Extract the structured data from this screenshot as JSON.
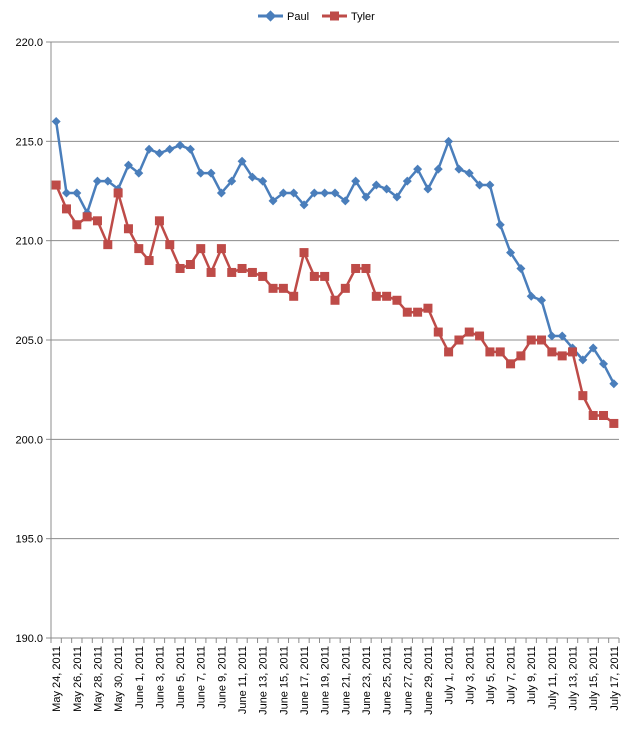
{
  "chart_data": {
    "type": "line",
    "ylim": [
      190,
      220
    ],
    "ytick_labels": [
      "220.0",
      "215.0",
      "210.0",
      "205.0",
      "200.0",
      "195.0",
      "190.0"
    ],
    "ytick_values": [
      220,
      215,
      210,
      205,
      200,
      195,
      190
    ],
    "grid": "horizontal",
    "legend_position": "top",
    "x_tick_labels": [
      "May 24, 2011",
      "May 26, 2011",
      "May 28, 2011",
      "May 30, 2011",
      "June 1, 2011",
      "June 3, 2011",
      "June 5, 2011",
      "June 7, 2011",
      "June 9, 2011",
      "June 11, 2011",
      "June 13, 2011",
      "June 15, 2011",
      "June 17, 2011",
      "June 19, 2011",
      "June 21, 2011",
      "June 23, 2011",
      "June 25, 2011",
      "June 27, 2011",
      "June 29, 2011",
      "July 1, 2011",
      "July 3, 2011",
      "July 5, 2011",
      "July 7, 2011",
      "July 9, 2011",
      "July 11, 2011",
      "July 13, 2011",
      "July 15, 2011",
      "July 17, 2011"
    ],
    "categories": [
      "May 24, 2011",
      "May 25, 2011",
      "May 26, 2011",
      "May 27, 2011",
      "May 28, 2011",
      "May 29, 2011",
      "May 30, 2011",
      "May 31, 2011",
      "June 1, 2011",
      "June 2, 2011",
      "June 3, 2011",
      "June 4, 2011",
      "June 5, 2011",
      "June 6, 2011",
      "June 7, 2011",
      "June 8, 2011",
      "June 9, 2011",
      "June 10, 2011",
      "June 11, 2011",
      "June 12, 2011",
      "June 13, 2011",
      "June 14, 2011",
      "June 15, 2011",
      "June 16, 2011",
      "June 17, 2011",
      "June 18, 2011",
      "June 19, 2011",
      "June 20, 2011",
      "June 21, 2011",
      "June 22, 2011",
      "June 23, 2011",
      "June 24, 2011",
      "June 25, 2011",
      "June 26, 2011",
      "June 27, 2011",
      "June 28, 2011",
      "June 29, 2011",
      "June 30, 2011",
      "July 1, 2011",
      "July 2, 2011",
      "July 3, 2011",
      "July 4, 2011",
      "July 5, 2011",
      "July 6, 2011",
      "July 7, 2011",
      "July 8, 2011",
      "July 9, 2011",
      "July 10, 2011",
      "July 11, 2011",
      "July 12, 2011",
      "July 13, 2011",
      "July 14, 2011",
      "July 15, 2011",
      "July 16, 2011",
      "July 17, 2011"
    ],
    "series": [
      {
        "name": "Paul",
        "color": "#4A7EBB",
        "marker": "diamond",
        "values": [
          216.0,
          212.4,
          212.4,
          211.4,
          213.0,
          213.0,
          212.6,
          213.8,
          213.4,
          214.6,
          214.4,
          214.6,
          214.8,
          214.6,
          213.4,
          213.4,
          212.4,
          213.0,
          214.0,
          213.2,
          213.0,
          212.0,
          212.4,
          212.4,
          211.8,
          212.4,
          212.4,
          212.4,
          212.0,
          213.0,
          212.2,
          212.8,
          212.6,
          212.2,
          213.0,
          213.6,
          212.6,
          213.6,
          215.0,
          213.6,
          213.4,
          212.8,
          212.8,
          210.8,
          209.4,
          208.6,
          207.2,
          207.0,
          205.2,
          205.2,
          204.6,
          204.0,
          204.6,
          203.8,
          202.8
        ]
      },
      {
        "name": "Tyler",
        "color": "#BE4B48",
        "marker": "square",
        "values": [
          212.8,
          211.6,
          210.8,
          211.2,
          211.0,
          209.8,
          212.4,
          210.6,
          209.6,
          209.0,
          211.0,
          209.8,
          208.6,
          208.8,
          209.6,
          208.4,
          209.6,
          208.4,
          208.6,
          208.4,
          208.2,
          207.6,
          207.6,
          207.2,
          209.4,
          208.2,
          208.2,
          207.0,
          207.6,
          208.6,
          208.6,
          207.2,
          207.2,
          207.0,
          206.4,
          206.4,
          206.6,
          205.4,
          204.4,
          205.0,
          205.4,
          205.2,
          204.4,
          204.4,
          203.8,
          204.2,
          205.0,
          205.0,
          204.4,
          204.2,
          204.4,
          202.2,
          201.2,
          201.2,
          200.8
        ]
      }
    ]
  }
}
